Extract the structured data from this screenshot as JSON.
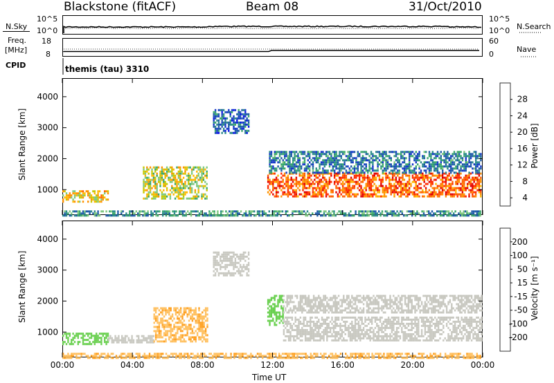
{
  "header": {
    "station": "Blackstone (fitACF)",
    "beam": "Beam 08",
    "date": "31/Oct/2010"
  },
  "strip_panels": {
    "noise": {
      "left_label": "N.Sky",
      "right_label": "N.Search",
      "left_ticks": [
        "10^5",
        "10^0"
      ],
      "right_ticks": [
        "10^5",
        "10^0"
      ]
    },
    "freq": {
      "left_label_top": "Freq.",
      "left_label_bottom": "[MHz]",
      "right_label": "Nave",
      "left_ticks": [
        "18",
        "8"
      ],
      "right_ticks": [
        "60",
        "0"
      ]
    },
    "cpid": {
      "label": "CPID",
      "text": "themis (tau) 3310"
    }
  },
  "chart_data": [
    {
      "type": "heatmap",
      "panel": "power",
      "ylabel": "Slant Range [km]",
      "xlabel": "",
      "y_ticks": [
        "1000",
        "2000",
        "3000",
        "4000"
      ],
      "ylim": [
        180,
        4600
      ],
      "x_ticks": [
        "00:00",
        "04:00",
        "08:00",
        "12:00",
        "16:00",
        "20:00",
        "00:00"
      ],
      "xlim_hours": [
        0,
        24
      ],
      "colorbar": {
        "label": "Power [dB]",
        "ticks": [
          "28",
          "24",
          "20",
          "16",
          "12",
          "8",
          "4"
        ],
        "colors": [
          "#e00000",
          "#ff2a00",
          "#ff6000",
          "#ff9200",
          "#ffb800",
          "#c8c800",
          "#7fc87f",
          "#3aa86a",
          "#2a8a8a",
          "#1d5aa8",
          "#1438c8",
          "#0a14e6"
        ]
      },
      "regions": [
        {
          "t_start": 0.0,
          "t_end": 2.6,
          "r_low": 600,
          "r_high": 980,
          "value": 20
        },
        {
          "t_start": 4.6,
          "t_end": 8.3,
          "r_low": 700,
          "r_high": 1750,
          "value": 18
        },
        {
          "t_start": 11.7,
          "t_end": 23.9,
          "r_low": 780,
          "r_high": 1550,
          "value": 26
        },
        {
          "t_start": 11.8,
          "t_end": 23.9,
          "r_low": 1550,
          "r_high": 2250,
          "value": 10
        },
        {
          "t_start": 8.6,
          "t_end": 10.6,
          "r_low": 2800,
          "r_high": 3600,
          "value": 8
        },
        {
          "t_start": 0.0,
          "t_end": 23.9,
          "r_low": 180,
          "r_high": 330,
          "value": 12
        }
      ]
    },
    {
      "type": "heatmap",
      "panel": "velocity",
      "ylabel": "Slant Range [km]",
      "xlabel": "Time UT",
      "y_ticks": [
        "1000",
        "2000",
        "3000",
        "4000"
      ],
      "ylim": [
        180,
        4600
      ],
      "x_ticks": [
        "00:00",
        "04:00",
        "08:00",
        "12:00",
        "16:00",
        "20:00",
        "00:00"
      ],
      "xlim_hours": [
        0,
        24
      ],
      "colorbar": {
        "label": "Velocity [m s⁻¹]",
        "ticks": [
          "200",
          "100",
          "50",
          "15",
          "-15",
          "-50",
          "-100",
          "-200"
        ],
        "colors": [
          "#1030c8",
          "#2060a8",
          "#2a8a6a",
          "#46a040",
          "#6ad050",
          "#c8c8c0",
          "#ffc060",
          "#ffa020",
          "#ff7800",
          "#ff3c00",
          "#e00000"
        ]
      },
      "regions": [
        {
          "t_start": 0.0,
          "t_end": 2.6,
          "r_low": 600,
          "r_high": 980,
          "value": 40
        },
        {
          "t_start": 2.6,
          "t_end": 5.2,
          "r_low": 650,
          "r_high": 900,
          "value": 0
        },
        {
          "t_start": 5.2,
          "t_end": 8.3,
          "r_low": 700,
          "r_high": 1800,
          "value": -60
        },
        {
          "t_start": 11.7,
          "t_end": 12.6,
          "r_low": 1200,
          "r_high": 2200,
          "value": 40
        },
        {
          "t_start": 12.6,
          "t_end": 23.9,
          "r_low": 750,
          "r_high": 1500,
          "value": 0
        },
        {
          "t_start": 12.6,
          "t_end": 23.9,
          "r_low": 1600,
          "r_high": 2200,
          "value": 0
        },
        {
          "t_start": 8.6,
          "t_end": 10.6,
          "r_low": 2800,
          "r_high": 3600,
          "value": 0
        },
        {
          "t_start": 0.0,
          "t_end": 23.9,
          "r_low": 180,
          "r_high": 330,
          "value": -60
        }
      ]
    }
  ]
}
